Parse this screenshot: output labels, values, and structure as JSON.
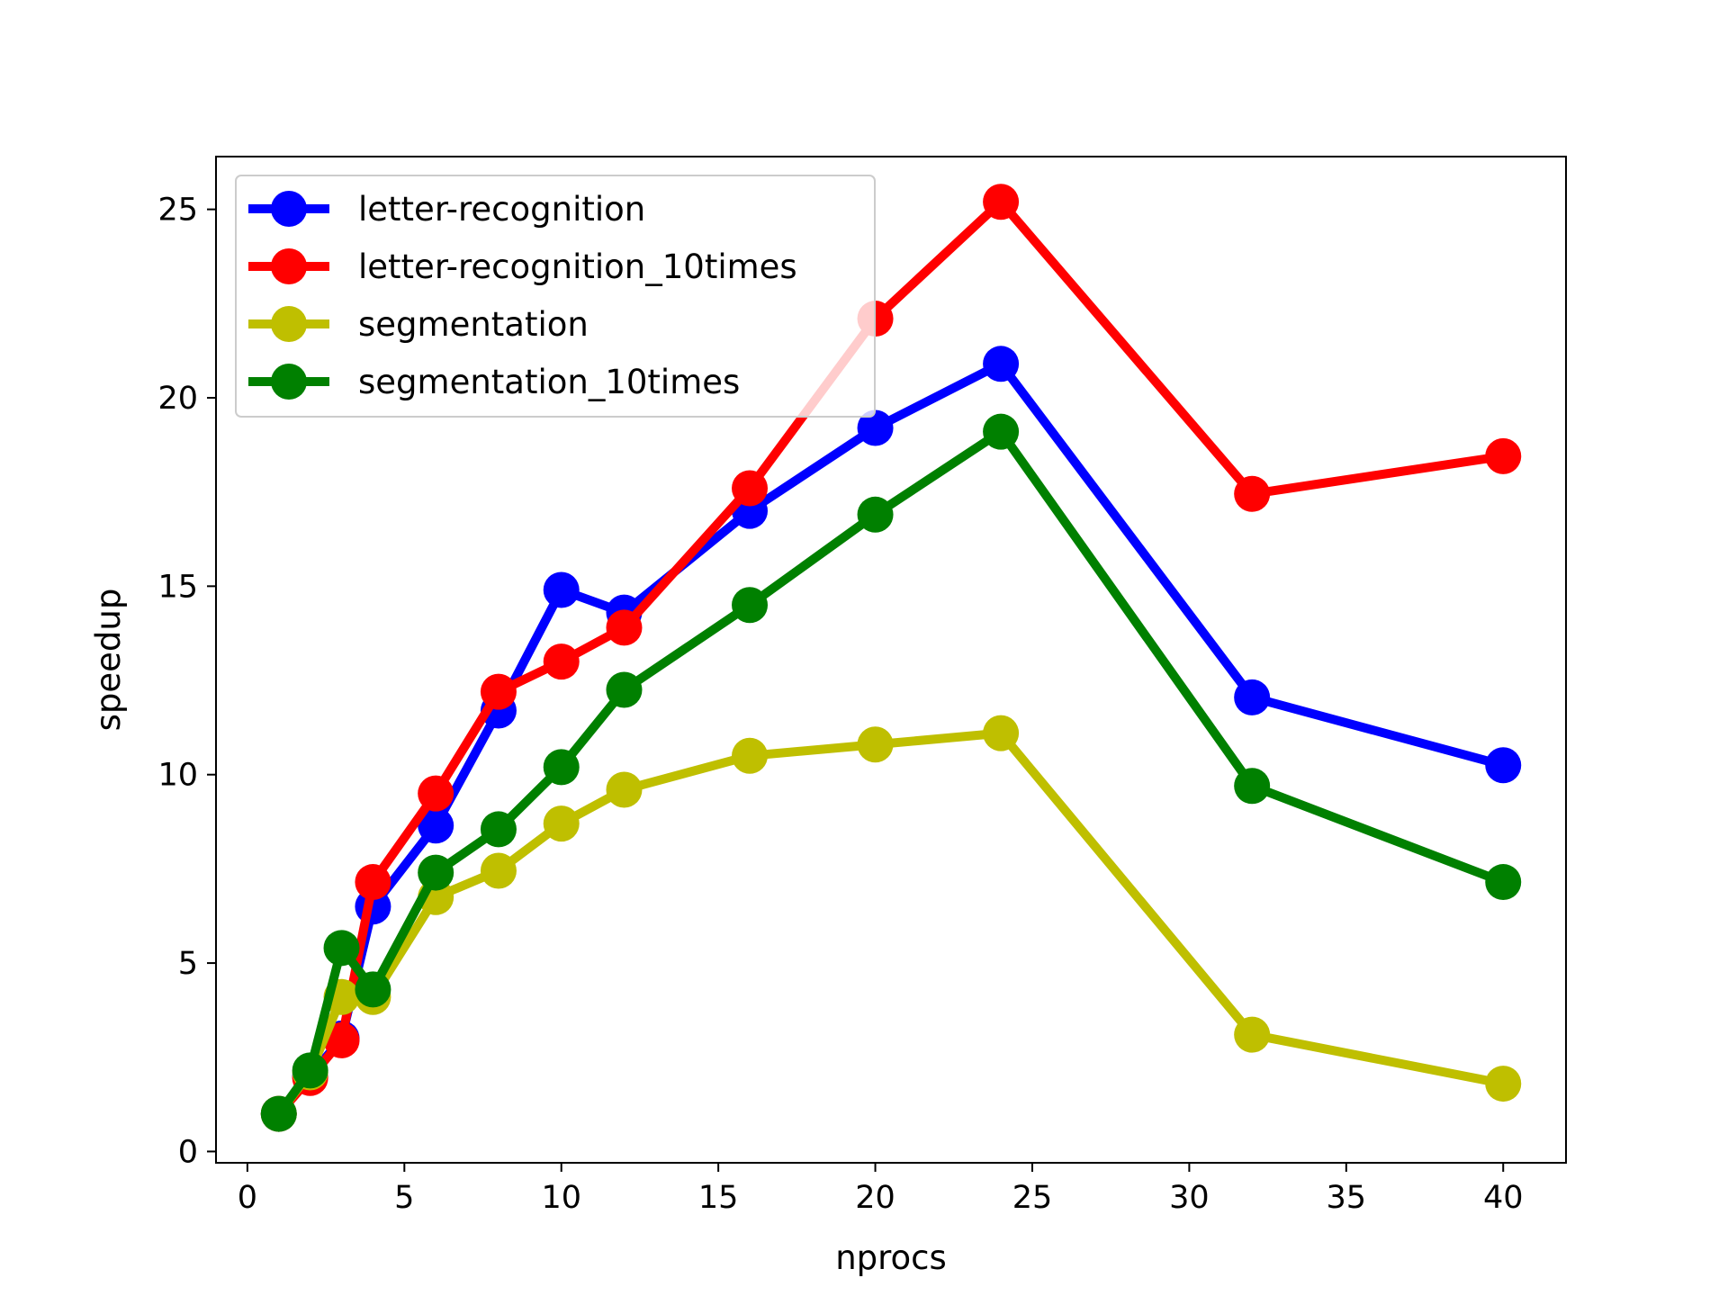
{
  "chart_data": {
    "type": "line",
    "title": "",
    "xlabel": "nprocs",
    "ylabel": "speedup",
    "xlim": [
      -1,
      42
    ],
    "ylim": [
      -0.3,
      26.4
    ],
    "xticks": [
      0,
      5,
      10,
      15,
      20,
      25,
      30,
      35,
      40
    ],
    "yticks": [
      0,
      5,
      10,
      15,
      20,
      25
    ],
    "grid": false,
    "legend_position": "top-left",
    "x": [
      1,
      2,
      3,
      4,
      6,
      8,
      10,
      12,
      16,
      20,
      24,
      32,
      40
    ],
    "series": [
      {
        "name": "letter-recognition",
        "color": "#0000ff",
        "values": [
          1.0,
          2.0,
          3.0,
          6.5,
          8.65,
          11.7,
          14.9,
          14.3,
          17.0,
          19.2,
          20.9,
          12.05,
          10.25
        ]
      },
      {
        "name": "letter-recognition_10times",
        "color": "#ff0000",
        "values": [
          1.0,
          1.95,
          2.95,
          7.15,
          9.5,
          12.2,
          13.0,
          13.9,
          17.6,
          22.1,
          25.2,
          17.45,
          18.45
        ]
      },
      {
        "name": "segmentation",
        "color": "#bfbf00",
        "values": [
          1.0,
          2.1,
          4.1,
          4.1,
          6.75,
          7.45,
          8.7,
          9.6,
          10.5,
          10.8,
          11.1,
          3.1,
          1.8
        ]
      },
      {
        "name": "segmentation_10times",
        "color": "#008000",
        "values": [
          1.0,
          2.15,
          5.4,
          4.3,
          7.4,
          8.55,
          10.2,
          12.25,
          14.5,
          16.9,
          19.1,
          9.7,
          7.15
        ]
      }
    ]
  }
}
